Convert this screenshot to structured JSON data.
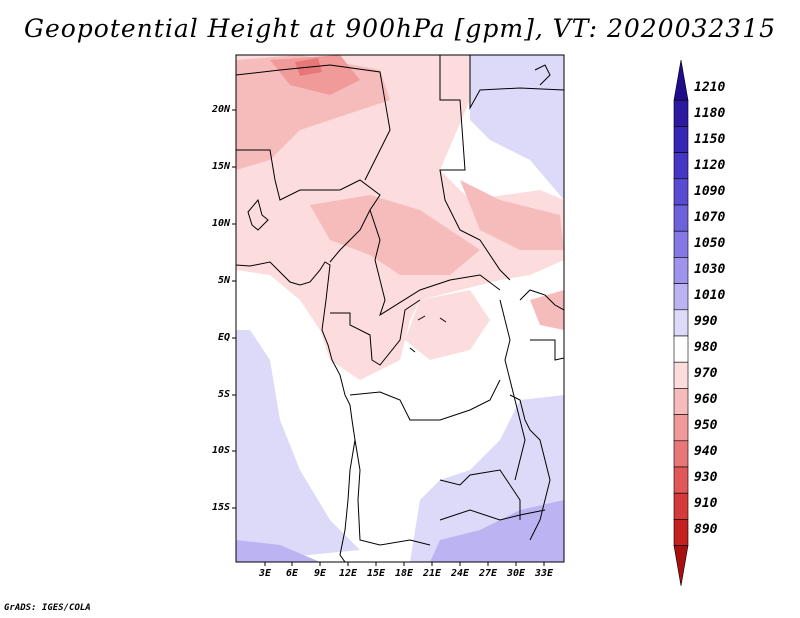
{
  "title": "Geopotential Height at 900hPa [gpm], VT: 2020032315",
  "credit": "GrADS: IGES/COLA",
  "map": {
    "variable": "Geopotential Height",
    "level": "900hPa",
    "units": "gpm",
    "valid_time": "2020032315",
    "lat_labels": [
      "20N",
      "15N",
      "10N",
      "5N",
      "EQ",
      "5S",
      "10S",
      "15S"
    ],
    "lon_labels": [
      "3E",
      "6E",
      "9E",
      "12E",
      "15E",
      "18E",
      "21E",
      "24E",
      "27E",
      "30E",
      "33E"
    ]
  },
  "colorbar": {
    "labels": [
      "1210",
      "1180",
      "1150",
      "1120",
      "1090",
      "1070",
      "1050",
      "1030",
      "1010",
      "990",
      "980",
      "970",
      "960",
      "950",
      "940",
      "930",
      "910",
      "890"
    ],
    "colors": [
      "#1e0c8c",
      "#2a1aa0",
      "#3626b4",
      "#4636c4",
      "#5a4cd2",
      "#6e62dc",
      "#8478e4",
      "#9e94ec",
      "#bcb4f2",
      "#dcdaf8",
      "#ffffff",
      "#fcdcdc",
      "#f6bcbc",
      "#f09a9a",
      "#e87878",
      "#e05858",
      "#d43a3a",
      "#c42020",
      "#a81010"
    ]
  }
}
